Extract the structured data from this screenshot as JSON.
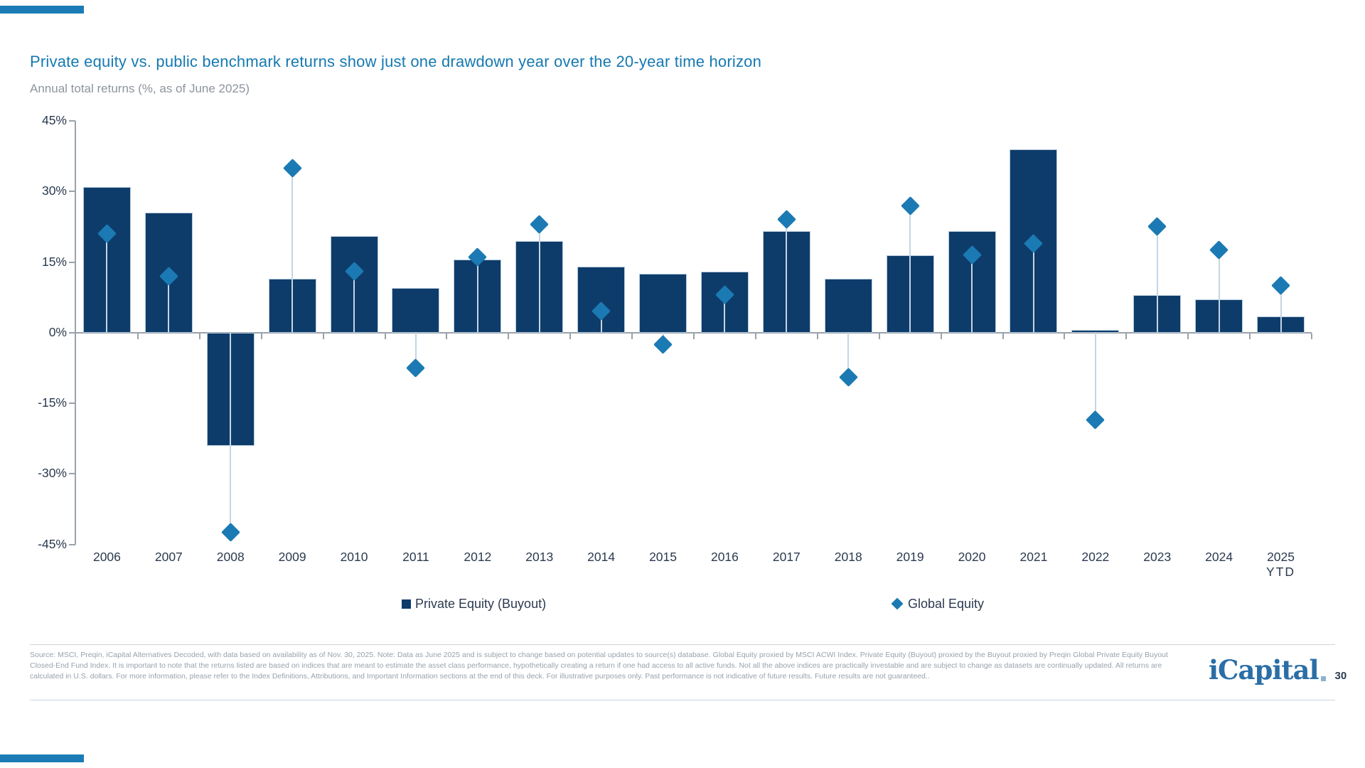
{
  "slide": {
    "title": "Private equity vs. public benchmark returns show just one drawdown year over the 20-year time horizon",
    "subtitle": "Annual total returns (%, as of June 2025)",
    "footer_text": "Source: MSCI, Preqin, iCapital Alternatives Decoded, with data based on availability as of Nov. 30, 2025. Note: Data as June 2025 and is subject to change based on potential updates to source(s) database. Global Equity proxied by MSCI ACWI Index. Private Equity (Buyout) proxied by the Buyout proxied by Preqin Global Private Equity Buyout Closed-End Fund Index. It is important to note that the returns listed are based on indices that are meant to estimate the asset class performance, hypothetically creating a return if one had access to all active funds. Not all the above indices are practically investable and are subject to change as datasets are continually updated. All returns are calculated in U.S. dollars. For more information, please refer to the Index Definitions, Attributions, and Important Information sections at the end of this deck. For illustrative purposes only. Past performance is not indicative of future results. Future results are not guaranteed..",
    "logo_text": "iCapital",
    "page_number": "30"
  },
  "legend": {
    "items": [
      {
        "label": "Private Equity (Buyout)",
        "marker": "square",
        "color": "#0e3c6a"
      },
      {
        "label": "Global Equity",
        "marker": "diamond",
        "color": "#1b7ab3"
      }
    ]
  },
  "colors": {
    "bar": "#0e3c6a",
    "diamond": "#1b7ab3",
    "stem": "#c3d6e4",
    "axis": "#9ba2a9",
    "title": "#1579b2",
    "accent": "#1b7cb5"
  },
  "chart_data": {
    "type": "bar",
    "title": "Private equity vs. public benchmark returns show just one drawdown year over the 20-year time horizon",
    "subtitle": "Annual total returns (%, as of June 2025)",
    "categories": [
      "2006",
      "2007",
      "2008",
      "2009",
      "2010",
      "2011",
      "2012",
      "2013",
      "2014",
      "2015",
      "2016",
      "2017",
      "2018",
      "2019",
      "2020",
      "2021",
      "2022",
      "2023",
      "2024",
      "2025 YTD"
    ],
    "series": [
      {
        "name": "Private Equity (Buyout)",
        "type": "bar",
        "color": "#0e3c6a",
        "values": [
          31,
          25.5,
          -24,
          11.5,
          20.5,
          9.5,
          15.5,
          19.5,
          14,
          12.5,
          13,
          21.5,
          11.5,
          16.5,
          21.5,
          39,
          0.5,
          8,
          7,
          3.5
        ]
      },
      {
        "name": "Global Equity",
        "type": "scatter",
        "marker": "diamond",
        "color": "#1b7ab3",
        "values": [
          21,
          12,
          -42.5,
          35,
          13,
          -7.5,
          16,
          23,
          4.5,
          -2.5,
          8,
          24,
          -9.5,
          27,
          16.5,
          19,
          -18.5,
          22.5,
          17.5,
          10
        ]
      }
    ],
    "ylim": [
      -45,
      45
    ],
    "ytick_step": 15,
    "ytick_labels": [
      "45%",
      "30%",
      "15%",
      "0%",
      "-15%",
      "-30%",
      "-45%"
    ],
    "ytick_values": [
      45,
      30,
      15,
      0,
      -15,
      -30,
      -45
    ],
    "grid": false,
    "legend_position": "bottom"
  }
}
